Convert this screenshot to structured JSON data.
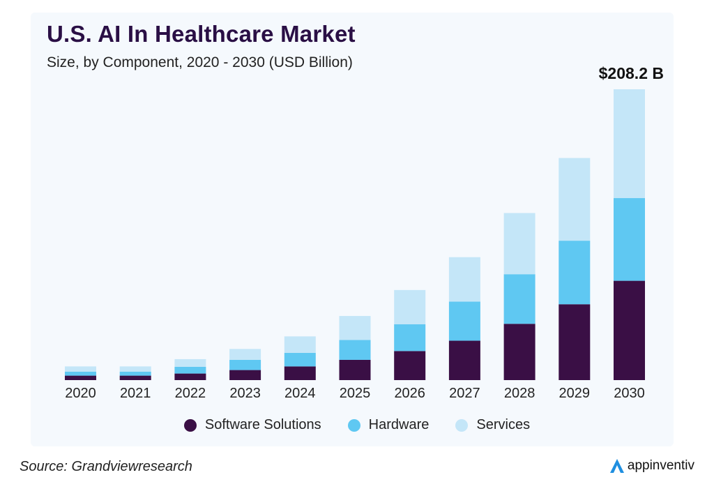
{
  "chart_data": {
    "type": "bar",
    "stacked": true,
    "title": "U.S. AI In Healthcare Market",
    "subtitle": "Size, by Component, 2020 - 2030 (USD Billion)",
    "annotation": "$208.2 B",
    "xlabel": "",
    "ylabel": "USD Billion",
    "ylim": [
      0,
      208.2
    ],
    "grid": false,
    "legend_position": "bottom",
    "categories": [
      "2020",
      "2021",
      "2022",
      "2023",
      "2024",
      "2025",
      "2026",
      "2027",
      "2028",
      "2029",
      "2030"
    ],
    "series": [
      {
        "name": "Software Solutions",
        "color": "#3a0f45",
        "values": [
          3.2,
          3.2,
          4.7,
          7.2,
          9.8,
          14.5,
          20.8,
          28.2,
          40.3,
          54.3,
          71.1
        ]
      },
      {
        "name": "Hardware",
        "color": "#5fc8f2",
        "values": [
          2.8,
          2.8,
          4.8,
          7.3,
          9.7,
          14.2,
          19.2,
          28.0,
          35.5,
          45.5,
          59.2
        ]
      },
      {
        "name": "Services",
        "color": "#c4e6f8",
        "values": [
          3.8,
          3.8,
          5.5,
          7.8,
          11.8,
          17.2,
          24.5,
          31.8,
          43.8,
          59.2,
          77.9
        ]
      }
    ]
  },
  "footer": {
    "source": "Source: Grandviewresearch",
    "brand": "appinventiv"
  }
}
